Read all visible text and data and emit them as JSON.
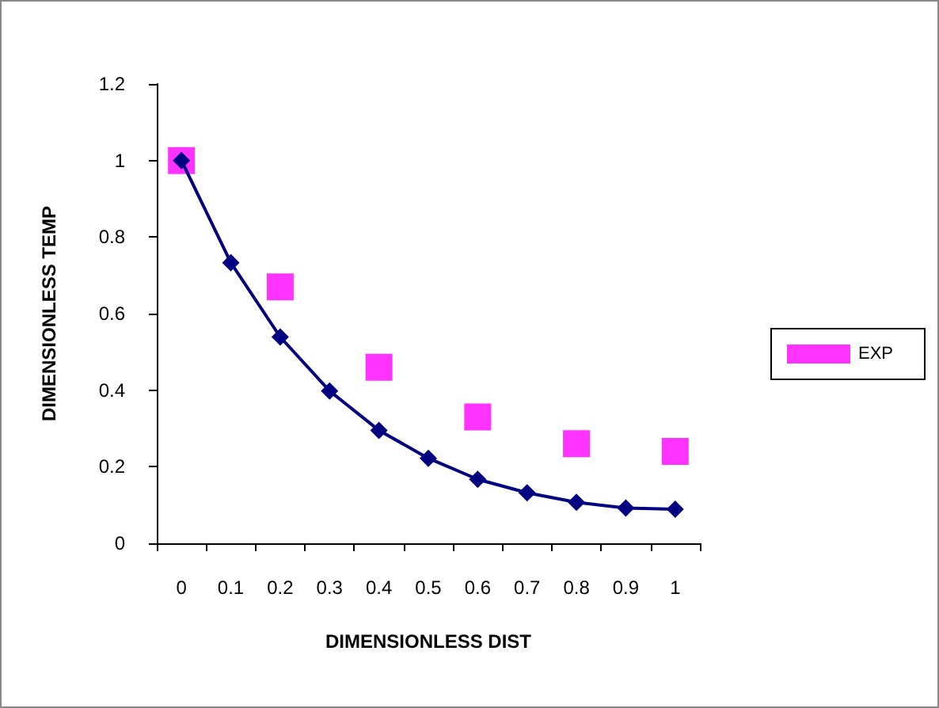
{
  "chart_data": {
    "type": "line",
    "xlabel": "DIMENSIONLESS DIST",
    "ylabel": "DIMENSIONLESS TEMP",
    "categories": [
      "0",
      "0.1",
      "0.2",
      "0.3",
      "0.4",
      "0.5",
      "0.6",
      "0.7",
      "0.8",
      "0.9",
      "1"
    ],
    "series": [
      {
        "name": "EXP",
        "type": "scatter",
        "marker": "square",
        "color": "#ff00ff",
        "x": [
          "0",
          "0.2",
          "0.4",
          "0.6",
          "0.8",
          "1"
        ],
        "values": [
          1,
          0.67,
          0.46,
          0.33,
          0.26,
          0.24
        ]
      },
      {
        "type": "line",
        "marker": "diamond",
        "color": "#000080",
        "values": [
          1,
          0.733,
          0.539,
          0.398,
          0.295,
          0.222,
          0.167,
          0.132,
          0.107,
          0.092,
          0.089
        ]
      }
    ],
    "ylim": [
      0,
      1.2
    ],
    "yticks": [
      0,
      0.2,
      0.4,
      0.6,
      0.8,
      1,
      1.2
    ],
    "grid": false,
    "legend": "right"
  }
}
